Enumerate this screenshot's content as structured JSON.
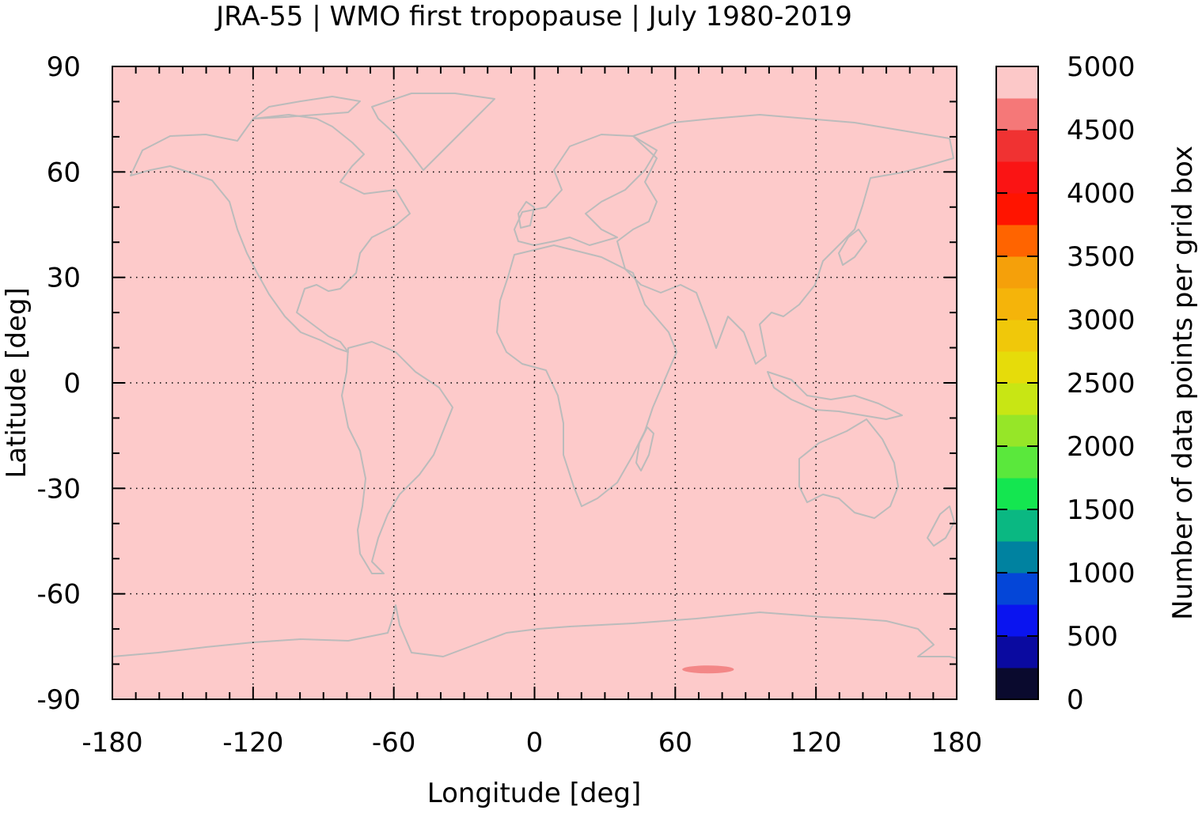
{
  "chart_data": {
    "type": "heatmap",
    "title": "JRA-55 | WMO first tropopause | July 1980-2019",
    "xlabel": "Longitude [deg]",
    "ylabel": "Latitude [deg]",
    "xlim": [
      -180,
      180
    ],
    "ylim": [
      -90,
      90
    ],
    "x_ticks": [
      -180,
      -120,
      -60,
      0,
      60,
      120,
      180
    ],
    "x_tick_labels": [
      "-180",
      "-120",
      "-60",
      "0",
      "60",
      "120",
      "180"
    ],
    "y_ticks": [
      90,
      60,
      30,
      0,
      -30,
      -60,
      -90
    ],
    "y_tick_labels": [
      "90",
      "60",
      "30",
      "0",
      "-30",
      "-60",
      "-90"
    ],
    "grid": true,
    "background_value": 5000,
    "features": [
      {
        "label": "",
        "lon_range": [
          63,
          85
        ],
        "lat_center": -81.5,
        "value": 4700
      }
    ],
    "colorbar": {
      "label": "Number of data points per grid box",
      "range": [
        0,
        5000
      ],
      "ticks": [
        0,
        500,
        1000,
        1500,
        2000,
        2500,
        3000,
        3500,
        4000,
        4500,
        5000
      ],
      "tick_labels": [
        "0",
        "500",
        "1000",
        "1500",
        "2000",
        "2500",
        "3000",
        "3500",
        "4000",
        "4500",
        "5000"
      ],
      "colors": [
        "#0a0a2e",
        "#0a0aa0",
        "#0a14f0",
        "#0446d8",
        "#0082a0",
        "#0ab882",
        "#14e650",
        "#5ae83c",
        "#96e628",
        "#c8e614",
        "#e6dc0a",
        "#f0c80a",
        "#f5b40a",
        "#f5a00a",
        "#ff6400",
        "#ff1400",
        "#fa1414",
        "#f03232",
        "#f57878",
        "#fcc8c8"
      ]
    },
    "coastline_color": "#bbbbbb",
    "colors": {
      "field": "#fdcaca",
      "feature": "#f38787",
      "coast": "#bbbbbb"
    }
  }
}
